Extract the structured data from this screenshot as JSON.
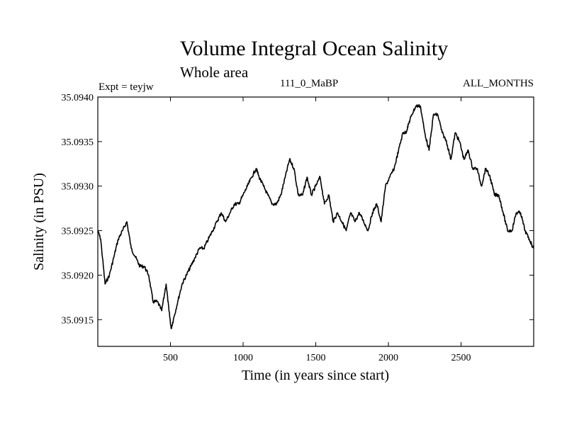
{
  "header": {
    "title": "Volume Integral Ocean Salinity",
    "subtitle": "Whole area",
    "expt": "Expt = teyjw",
    "run_id": "111_0_MaBP",
    "months": "ALL_MONTHS"
  },
  "chart_data": {
    "type": "line",
    "title": "Volume Integral Ocean Salinity",
    "subtitle": "Whole area",
    "xlabel": "Time (in years since start)",
    "ylabel": "Salinity (in PSU)",
    "xlim": [
      0,
      3000
    ],
    "ylim": [
      0.0,
      1.0
    ],
    "y_offset": 35.0912,
    "y_scale": 0.0028,
    "xticks": [
      500,
      1000,
      1500,
      2000,
      2500
    ],
    "xtick_labels": [
      "500",
      "1000",
      "1500",
      "2000",
      "2500"
    ],
    "yticks": [
      35.0915,
      35.092,
      35.0925,
      35.093,
      35.0935,
      35.094
    ],
    "ytick_labels": [
      "35.0915",
      "35.0920",
      "35.0925",
      "35.0930",
      "35.0935",
      "35.0940"
    ],
    "grid": false,
    "series": [
      {
        "name": "salinity",
        "x": [
          0,
          20,
          50,
          80,
          110,
          140,
          170,
          200,
          230,
          260,
          290,
          320,
          350,
          380,
          410,
          440,
          470,
          490,
          505,
          520,
          550,
          580,
          610,
          640,
          670,
          700,
          730,
          760,
          790,
          820,
          850,
          880,
          910,
          940,
          970,
          1000,
          1030,
          1060,
          1090,
          1110,
          1140,
          1170,
          1200,
          1230,
          1260,
          1290,
          1320,
          1350,
          1380,
          1410,
          1440,
          1470,
          1500,
          1530,
          1560,
          1590,
          1620,
          1650,
          1680,
          1710,
          1740,
          1770,
          1800,
          1830,
          1860,
          1890,
          1920,
          1950,
          1980,
          2010,
          2040,
          2070,
          2100,
          2120,
          2140,
          2160,
          2190,
          2220,
          2250,
          2280,
          2310,
          2340,
          2370,
          2400,
          2430,
          2460,
          2490,
          2520,
          2550,
          2580,
          2610,
          2640,
          2670,
          2700,
          2730,
          2760,
          2790,
          2820,
          2850,
          2880,
          2910,
          2940,
          2970,
          3000
        ],
        "y": [
          0.464,
          0.429,
          0.25,
          0.286,
          0.357,
          0.429,
          0.464,
          0.5,
          0.393,
          0.357,
          0.321,
          0.321,
          0.286,
          0.179,
          0.179,
          0.143,
          0.25,
          0.143,
          0.071,
          0.107,
          0.179,
          0.25,
          0.286,
          0.321,
          0.357,
          0.393,
          0.393,
          0.429,
          0.464,
          0.5,
          0.536,
          0.5,
          0.536,
          0.571,
          0.571,
          0.607,
          0.643,
          0.679,
          0.714,
          0.679,
          0.643,
          0.607,
          0.571,
          0.571,
          0.607,
          0.679,
          0.75,
          0.714,
          0.607,
          0.607,
          0.679,
          0.607,
          0.643,
          0.679,
          0.571,
          0.607,
          0.5,
          0.536,
          0.5,
          0.464,
          0.536,
          0.5,
          0.536,
          0.5,
          0.464,
          0.536,
          0.571,
          0.5,
          0.643,
          0.679,
          0.714,
          0.786,
          0.857,
          0.857,
          0.893,
          0.929,
          0.964,
          0.964,
          0.857,
          0.786,
          0.929,
          0.929,
          0.857,
          0.821,
          0.75,
          0.857,
          0.821,
          0.75,
          0.786,
          0.714,
          0.714,
          0.643,
          0.714,
          0.679,
          0.607,
          0.607,
          0.536,
          0.464,
          0.464,
          0.536,
          0.536,
          0.464,
          0.429,
          0.393
        ]
      }
    ]
  }
}
